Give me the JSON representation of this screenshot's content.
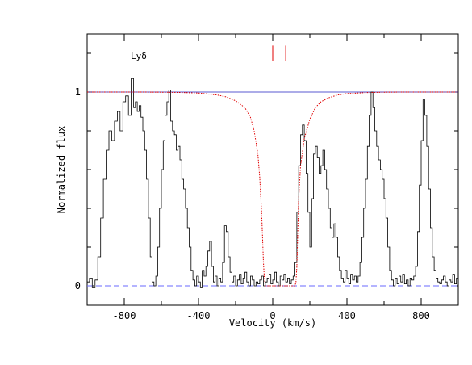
{
  "chart_data": {
    "type": "line",
    "xlabel": "Velocity (km/s)",
    "ylabel": "Normalized flux",
    "annotation": "Lyδ",
    "xlim": [
      -1000,
      1000
    ],
    "ylim": [
      -0.1,
      1.3
    ],
    "x_ticks": [
      -800,
      -400,
      0,
      400,
      800
    ],
    "y_ticks": [
      0,
      1
    ],
    "grid": false,
    "component_markers": [
      0,
      70
    ],
    "series": [
      {
        "style": "black histogram",
        "x": [
          -995,
          -980,
          -965,
          -950,
          -935,
          -920,
          -905,
          -890,
          -875,
          -860,
          -845,
          -830,
          -815,
          -800,
          -785,
          -770,
          -755,
          -745,
          -735,
          -725,
          -715,
          -705,
          -695,
          -685,
          -675,
          -665,
          -655,
          -645,
          -635,
          -625,
          -615,
          -605,
          -595,
          -585,
          -575,
          -565,
          -555,
          -545,
          -535,
          -525,
          -515,
          -505,
          -495,
          -485,
          -475,
          -465,
          -455,
          -445,
          -435,
          -425,
          -415,
          -405,
          -395,
          -385,
          -375,
          -365,
          -355,
          -345,
          -335,
          -325,
          -315,
          -305,
          -295,
          -285,
          -275,
          -265,
          -255,
          -245,
          -235,
          -225,
          -215,
          -205,
          -195,
          -185,
          -175,
          -165,
          -155,
          -145,
          -135,
          -125,
          -115,
          -105,
          -95,
          -85,
          -75,
          -65,
          -55,
          -45,
          -35,
          -25,
          -15,
          -5,
          5,
          15,
          25,
          35,
          45,
          55,
          65,
          75,
          85,
          95,
          105,
          115,
          125,
          135,
          145,
          155,
          165,
          175,
          185,
          195,
          205,
          215,
          225,
          235,
          245,
          255,
          265,
          275,
          285,
          295,
          305,
          315,
          325,
          335,
          345,
          355,
          365,
          375,
          385,
          395,
          405,
          415,
          425,
          435,
          445,
          455,
          465,
          475,
          485,
          495,
          505,
          515,
          525,
          535,
          545,
          555,
          565,
          575,
          585,
          595,
          605,
          615,
          625,
          635,
          645,
          655,
          665,
          675,
          685,
          695,
          705,
          715,
          725,
          735,
          745,
          755,
          765,
          775,
          785,
          795,
          805,
          815,
          825,
          835,
          845,
          855,
          865,
          875,
          885,
          895,
          905,
          915,
          925,
          935,
          945,
          955,
          965,
          975,
          985,
          995
        ],
        "y": [
          0.02,
          0.04,
          -0.01,
          0.03,
          0.15,
          0.35,
          0.55,
          0.7,
          0.8,
          0.75,
          0.85,
          0.9,
          0.8,
          0.95,
          0.98,
          0.88,
          1.07,
          0.92,
          0.95,
          0.9,
          0.93,
          0.87,
          0.8,
          0.7,
          0.55,
          0.35,
          0.15,
          0.02,
          0.0,
          0.05,
          0.2,
          0.4,
          0.6,
          0.75,
          0.88,
          0.95,
          1.01,
          0.85,
          0.8,
          0.78,
          0.7,
          0.72,
          0.65,
          0.55,
          0.5,
          0.4,
          0.3,
          0.2,
          0.08,
          0.03,
          0.0,
          0.05,
          0.02,
          -0.01,
          0.08,
          0.05,
          0.1,
          0.18,
          0.23,
          0.1,
          0.02,
          0.05,
          0.0,
          0.04,
          0.02,
          0.12,
          0.31,
          0.28,
          0.15,
          0.07,
          0.02,
          0.05,
          0.0,
          0.03,
          0.06,
          0.01,
          0.04,
          0.07,
          0.02,
          0.0,
          0.05,
          0.03,
          0.0,
          0.02,
          0.01,
          0.03,
          0.05,
          0.0,
          0.02,
          0.04,
          0.06,
          0.01,
          0.03,
          0.07,
          0.02,
          0.0,
          0.05,
          0.03,
          0.06,
          0.02,
          0.04,
          0.01,
          0.03,
          0.05,
          0.12,
          0.38,
          0.62,
          0.78,
          0.83,
          0.75,
          0.58,
          0.38,
          0.2,
          0.45,
          0.68,
          0.72,
          0.66,
          0.58,
          0.62,
          0.7,
          0.6,
          0.5,
          0.4,
          0.3,
          0.25,
          0.32,
          0.25,
          0.15,
          0.08,
          0.04,
          0.02,
          0.08,
          0.04,
          0.01,
          0.06,
          0.03,
          0.05,
          0.02,
          0.05,
          0.12,
          0.25,
          0.4,
          0.55,
          0.72,
          0.88,
          1.0,
          0.92,
          0.8,
          0.72,
          0.65,
          0.6,
          0.55,
          0.45,
          0.35,
          0.2,
          0.08,
          0.03,
          0.0,
          0.04,
          0.01,
          0.05,
          0.02,
          0.06,
          0.01,
          0.03,
          0.0,
          0.04,
          0.03,
          0.05,
          0.1,
          0.28,
          0.52,
          0.75,
          0.96,
          0.88,
          0.72,
          0.5,
          0.3,
          0.15,
          0.08,
          0.04,
          0.02,
          0.01,
          0.03,
          0.05,
          0.02,
          0.0,
          0.03,
          0.02,
          0.06,
          0.01,
          0.04
        ]
      },
      {
        "style": "red dotted model",
        "x": [
          -1000,
          -900,
          -800,
          -700,
          -600,
          -500,
          -400,
          -300,
          -250,
          -200,
          -150,
          -120,
          -100,
          -80,
          -70,
          -60,
          -55,
          -50,
          -45,
          -40,
          -30,
          0,
          30,
          70,
          100,
          120,
          125,
          130,
          135,
          140,
          150,
          170,
          200,
          230,
          260,
          300,
          350,
          400,
          500,
          600,
          700,
          800,
          900,
          1000
        ],
        "y": [
          1.0,
          1.0,
          1.0,
          1.0,
          0.999,
          0.998,
          0.995,
          0.985,
          0.975,
          0.955,
          0.92,
          0.87,
          0.8,
          0.68,
          0.56,
          0.38,
          0.25,
          0.12,
          0.04,
          0.0,
          0.0,
          0.0,
          0.0,
          0.0,
          0.0,
          0.0,
          0.02,
          0.1,
          0.28,
          0.45,
          0.62,
          0.76,
          0.86,
          0.92,
          0.95,
          0.97,
          0.985,
          0.992,
          0.997,
          0.999,
          1.0,
          1.0,
          1.0,
          1.0
        ]
      },
      {
        "style": "blue continuum",
        "x": [
          -1000,
          1000
        ],
        "y": [
          1.0,
          1.0
        ]
      },
      {
        "style": "blue dashed zero",
        "x": [
          -1000,
          1000
        ],
        "y": [
          0.0,
          0.0
        ]
      }
    ]
  }
}
